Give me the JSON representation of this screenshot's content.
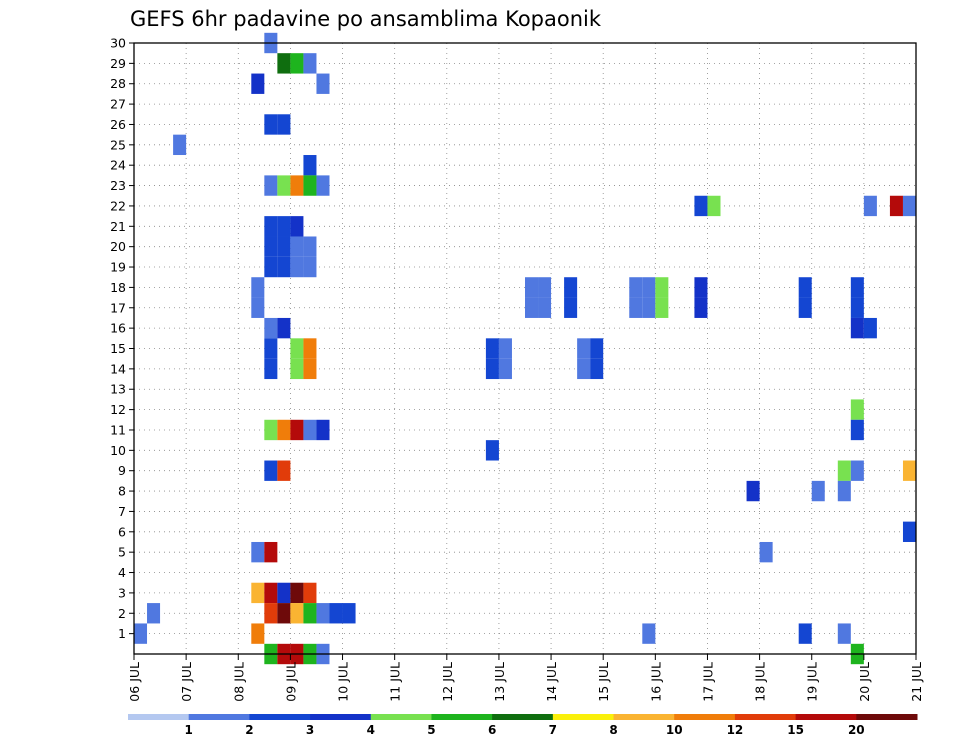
{
  "chart_data": {
    "type": "heatmap",
    "title": "GEFS 6hr padavine po ansamblima Kopaonik",
    "xlabel": "",
    "ylabel": "",
    "x_tick_labels": [
      "06 JUL",
      "07 JUL",
      "08 JUL",
      "09 JUL",
      "10 JUL",
      "11 JUL",
      "12 JUL",
      "13 JUL",
      "14 JUL",
      "15 JUL",
      "16 JUL",
      "17 JUL",
      "18 JUL",
      "19 JUL",
      "20 JUL",
      "21 JUL"
    ],
    "y_tick_labels": [
      "1",
      "2",
      "3",
      "4",
      "5",
      "6",
      "7",
      "8",
      "9",
      "10",
      "11",
      "12",
      "13",
      "14",
      "15",
      "16",
      "17",
      "18",
      "19",
      "20",
      "21",
      "22",
      "23",
      "24",
      "25",
      "26",
      "27",
      "28",
      "29",
      "30"
    ],
    "xlim_days": [
      0,
      15
    ],
    "time_step_hours": 6,
    "ylim": [
      0,
      30
    ],
    "grid": true,
    "legend": {
      "position": "bottom",
      "labels": [
        "1",
        "2",
        "3",
        "4",
        "5",
        "6",
        "7",
        "8",
        "10",
        "12",
        "15",
        "20"
      ],
      "colors": [
        "#b4c8f0",
        "#5078e0",
        "#1446d2",
        "#1432c8",
        "#78e150",
        "#1eb41e",
        "#0f6e0f",
        "#faf00a",
        "#fab432",
        "#f07d0a",
        "#e13c0a",
        "#b40a0a",
        "#6e0a0a"
      ]
    },
    "cells": [
      {
        "day": 2.5,
        "member": 30,
        "value": 1
      },
      {
        "day": 2.75,
        "member": 29,
        "value": 6
      },
      {
        "day": 3.0,
        "member": 29,
        "value": 5
      },
      {
        "day": 3.25,
        "member": 29,
        "value": 1
      },
      {
        "day": 2.25,
        "member": 28,
        "value": 3
      },
      {
        "day": 3.5,
        "member": 28,
        "value": 1
      },
      {
        "day": 2.5,
        "member": 26,
        "value": 2
      },
      {
        "day": 2.75,
        "member": 26,
        "value": 2
      },
      {
        "day": 0.75,
        "member": 25,
        "value": 1
      },
      {
        "day": 3.25,
        "member": 24,
        "value": 2
      },
      {
        "day": 2.5,
        "member": 23,
        "value": 1
      },
      {
        "day": 2.75,
        "member": 23,
        "value": 4
      },
      {
        "day": 3.0,
        "member": 23,
        "value": 10
      },
      {
        "day": 3.25,
        "member": 23,
        "value": 5
      },
      {
        "day": 3.5,
        "member": 23,
        "value": 1
      },
      {
        "day": 10.75,
        "member": 22,
        "value": 2
      },
      {
        "day": 11.0,
        "member": 22,
        "value": 4
      },
      {
        "day": 14.0,
        "member": 22,
        "value": 1
      },
      {
        "day": 14.5,
        "member": 22,
        "value": 15
      },
      {
        "day": 14.75,
        "member": 22,
        "value": 1
      },
      {
        "day": 2.5,
        "member": 21,
        "value": 2
      },
      {
        "day": 2.75,
        "member": 21,
        "value": 2
      },
      {
        "day": 3.0,
        "member": 21,
        "value": 3
      },
      {
        "day": 2.5,
        "member": 20,
        "value": 2
      },
      {
        "day": 2.75,
        "member": 20,
        "value": 2
      },
      {
        "day": 3.0,
        "member": 20,
        "value": 1
      },
      {
        "day": 3.25,
        "member": 20,
        "value": 1
      },
      {
        "day": 2.5,
        "member": 19,
        "value": 2
      },
      {
        "day": 2.75,
        "member": 19,
        "value": 2
      },
      {
        "day": 3.0,
        "member": 19,
        "value": 1
      },
      {
        "day": 3.25,
        "member": 19,
        "value": 1
      },
      {
        "day": 2.25,
        "member": 18,
        "value": 1
      },
      {
        "day": 7.5,
        "member": 18,
        "value": 1
      },
      {
        "day": 7.75,
        "member": 18,
        "value": 1
      },
      {
        "day": 8.25,
        "member": 18,
        "value": 2
      },
      {
        "day": 9.5,
        "member": 18,
        "value": 1
      },
      {
        "day": 9.75,
        "member": 18,
        "value": 1
      },
      {
        "day": 10.0,
        "member": 18,
        "value": 4
      },
      {
        "day": 10.75,
        "member": 18,
        "value": 3
      },
      {
        "day": 12.75,
        "member": 18,
        "value": 2
      },
      {
        "day": 13.75,
        "member": 18,
        "value": 2
      },
      {
        "day": 2.25,
        "member": 17,
        "value": 1
      },
      {
        "day": 7.5,
        "member": 17,
        "value": 1
      },
      {
        "day": 7.75,
        "member": 17,
        "value": 1
      },
      {
        "day": 8.25,
        "member": 17,
        "value": 2
      },
      {
        "day": 9.5,
        "member": 17,
        "value": 1
      },
      {
        "day": 9.75,
        "member": 17,
        "value": 1
      },
      {
        "day": 10.0,
        "member": 17,
        "value": 4
      },
      {
        "day": 10.75,
        "member": 17,
        "value": 3
      },
      {
        "day": 12.75,
        "member": 17,
        "value": 2
      },
      {
        "day": 13.75,
        "member": 17,
        "value": 2
      },
      {
        "day": 2.5,
        "member": 16,
        "value": 1
      },
      {
        "day": 2.75,
        "member": 16,
        "value": 3
      },
      {
        "day": 13.75,
        "member": 16,
        "value": 3
      },
      {
        "day": 14.0,
        "member": 16,
        "value": 2
      },
      {
        "day": 2.5,
        "member": 15,
        "value": 2
      },
      {
        "day": 3.0,
        "member": 15,
        "value": 4
      },
      {
        "day": 3.25,
        "member": 15,
        "value": 10
      },
      {
        "day": 6.75,
        "member": 15,
        "value": 2
      },
      {
        "day": 7.0,
        "member": 15,
        "value": 1
      },
      {
        "day": 8.5,
        "member": 15,
        "value": 1
      },
      {
        "day": 8.75,
        "member": 15,
        "value": 2
      },
      {
        "day": 2.5,
        "member": 14,
        "value": 2
      },
      {
        "day": 3.0,
        "member": 14,
        "value": 4
      },
      {
        "day": 3.25,
        "member": 14,
        "value": 10
      },
      {
        "day": 6.75,
        "member": 14,
        "value": 2
      },
      {
        "day": 7.0,
        "member": 14,
        "value": 1
      },
      {
        "day": 8.5,
        "member": 14,
        "value": 1
      },
      {
        "day": 8.75,
        "member": 14,
        "value": 2
      },
      {
        "day": 13.75,
        "member": 12,
        "value": 4
      },
      {
        "day": 2.5,
        "member": 11,
        "value": 4
      },
      {
        "day": 2.75,
        "member": 11,
        "value": 10
      },
      {
        "day": 3.0,
        "member": 11,
        "value": 15
      },
      {
        "day": 3.25,
        "member": 11,
        "value": 1
      },
      {
        "day": 3.5,
        "member": 11,
        "value": 3
      },
      {
        "day": 13.75,
        "member": 11,
        "value": 2
      },
      {
        "day": 6.75,
        "member": 10,
        "value": 2
      },
      {
        "day": 2.5,
        "member": 9,
        "value": 2
      },
      {
        "day": 2.75,
        "member": 9,
        "value": 12
      },
      {
        "day": 13.5,
        "member": 9,
        "value": 4
      },
      {
        "day": 13.75,
        "member": 9,
        "value": 1
      },
      {
        "day": 14.75,
        "member": 9,
        "value": 8
      },
      {
        "day": 11.75,
        "member": 8,
        "value": 3
      },
      {
        "day": 13.0,
        "member": 8,
        "value": 1
      },
      {
        "day": 13.5,
        "member": 8,
        "value": 1
      },
      {
        "day": 14.75,
        "member": 6,
        "value": 2
      },
      {
        "day": 2.25,
        "member": 5,
        "value": 1
      },
      {
        "day": 2.5,
        "member": 5,
        "value": 15
      },
      {
        "day": 12.0,
        "member": 5,
        "value": 1
      },
      {
        "day": 2.25,
        "member": 3,
        "value": 8
      },
      {
        "day": 2.5,
        "member": 3,
        "value": 15
      },
      {
        "day": 2.75,
        "member": 3,
        "value": 3
      },
      {
        "day": 3.0,
        "member": 3,
        "value": 20
      },
      {
        "day": 3.25,
        "member": 3,
        "value": 12
      },
      {
        "day": 0.25,
        "member": 2,
        "value": 1
      },
      {
        "day": 2.5,
        "member": 2,
        "value": 12
      },
      {
        "day": 2.75,
        "member": 2,
        "value": 20
      },
      {
        "day": 3.0,
        "member": 2,
        "value": 8
      },
      {
        "day": 3.25,
        "member": 2,
        "value": 5
      },
      {
        "day": 3.5,
        "member": 2,
        "value": 1
      },
      {
        "day": 3.75,
        "member": 2,
        "value": 2
      },
      {
        "day": 4.0,
        "member": 2,
        "value": 2
      },
      {
        "day": 0.0,
        "member": 1,
        "value": 1
      },
      {
        "day": 2.25,
        "member": 1,
        "value": 10
      },
      {
        "day": 9.75,
        "member": 1,
        "value": 1
      },
      {
        "day": 12.75,
        "member": 1,
        "value": 2
      },
      {
        "day": 13.5,
        "member": 1,
        "value": 1
      },
      {
        "day": 2.5,
        "member": 0,
        "value": 5
      },
      {
        "day": 2.75,
        "member": 0,
        "value": 15
      },
      {
        "day": 3.0,
        "member": 0,
        "value": 15
      },
      {
        "day": 3.25,
        "member": 0,
        "value": 5
      },
      {
        "day": 3.5,
        "member": 0,
        "value": 1
      },
      {
        "day": 13.75,
        "member": 0,
        "value": 5
      }
    ]
  }
}
